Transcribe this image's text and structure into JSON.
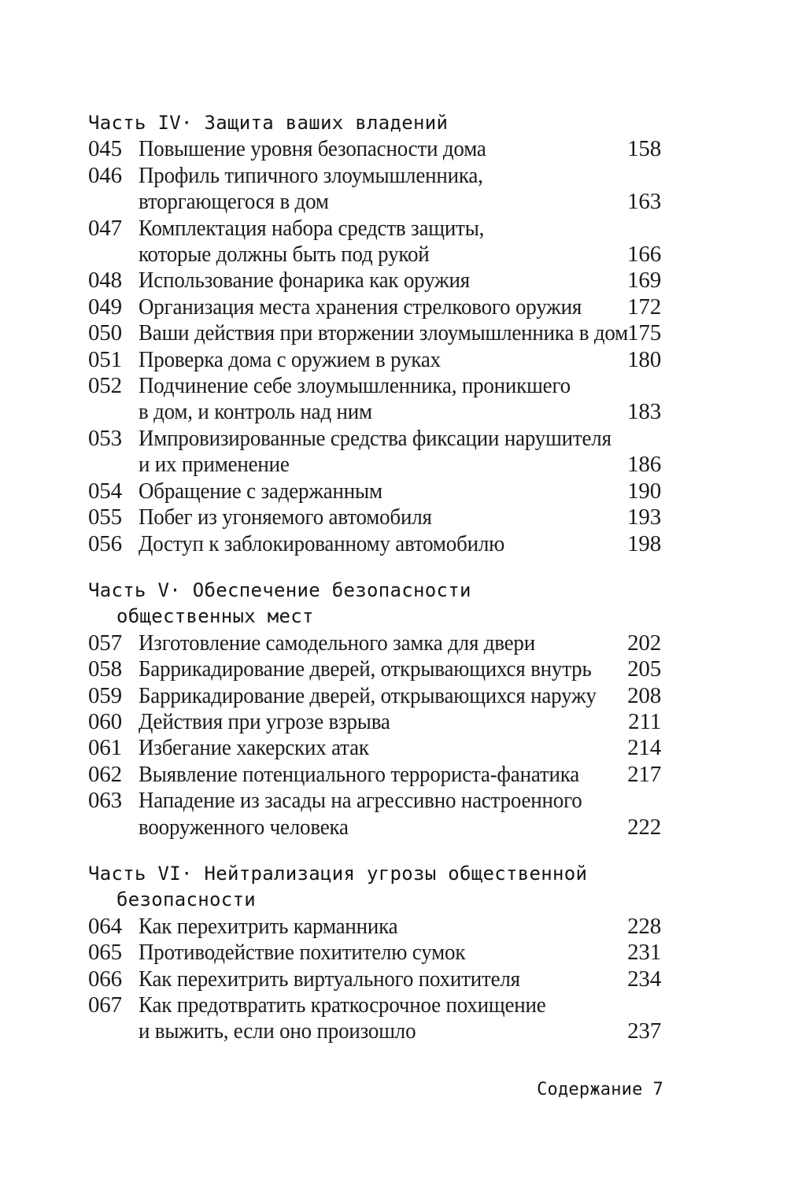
{
  "page": {
    "background": "#ffffff",
    "text_color": "#1b1b1b",
    "heading_text_color": "#161616"
  },
  "toc": {
    "sections": [
      {
        "heading_lines": [
          "Часть IV· Защита ваших владений"
        ],
        "entries": [
          {
            "num": "045",
            "lines": [
              "Повышение уровня безопасности дома"
            ],
            "page": "158"
          },
          {
            "num": "046",
            "lines": [
              "Профиль типичного злоумышленника,",
              "вторгающегося в дом"
            ],
            "page": "163"
          },
          {
            "num": "047",
            "lines": [
              "Комплектация набора средств защиты,",
              "которые должны быть под рукой"
            ],
            "page": "166"
          },
          {
            "num": "048",
            "lines": [
              "Использование фонарика как оружия"
            ],
            "page": "169"
          },
          {
            "num": "049",
            "lines": [
              "Организация места хранения стрелкового оружия"
            ],
            "page": "172"
          },
          {
            "num": "050",
            "lines": [
              "Ваши действия при вторжении злоумышленника в дом"
            ],
            "page": "175"
          },
          {
            "num": "051",
            "lines": [
              "Проверка дома с оружием в руках"
            ],
            "page": "180"
          },
          {
            "num": "052",
            "lines": [
              "Подчинение себе злоумышленника, проникшего",
              "в дом, и контроль над ним"
            ],
            "page": "183"
          },
          {
            "num": "053",
            "lines": [
              "Импровизированные средства фиксации нарушителя",
              "и их применение"
            ],
            "page": "186"
          },
          {
            "num": "054",
            "lines": [
              "Обращение с задержанным"
            ],
            "page": "190"
          },
          {
            "num": "055",
            "lines": [
              "Побег из угоняемого автомобиля"
            ],
            "page": "193"
          },
          {
            "num": "056",
            "lines": [
              "Доступ к заблокированному автомобилю"
            ],
            "page": "198"
          }
        ]
      },
      {
        "heading_lines": [
          "Часть V· Обеспечение безопасности",
          "общественных мест"
        ],
        "entries": [
          {
            "num": "057",
            "lines": [
              "Изготовление самодельного замка для двери"
            ],
            "page": "202"
          },
          {
            "num": "058",
            "lines": [
              "Баррикадирование дверей, открывающихся внутрь"
            ],
            "page": "205"
          },
          {
            "num": "059",
            "lines": [
              "Баррикадирование дверей, открывающихся наружу"
            ],
            "page": "208"
          },
          {
            "num": "060",
            "lines": [
              "Действия при угрозе взрыва"
            ],
            "page": "211"
          },
          {
            "num": "061",
            "lines": [
              "Избегание хакерских атак"
            ],
            "page": "214"
          },
          {
            "num": "062",
            "lines": [
              "Выявление потенциального террориста-фанатика"
            ],
            "page": "217"
          },
          {
            "num": "063",
            "lines": [
              "Нападение из засады на агрессивно настроенного",
              "вооруженного человека"
            ],
            "page": "222"
          }
        ]
      },
      {
        "heading_lines": [
          "Часть VI· Нейтрализация угрозы общественной",
          "безопасности"
        ],
        "entries": [
          {
            "num": "064",
            "lines": [
              "Как перехитрить карманника"
            ],
            "page": "228"
          },
          {
            "num": "065",
            "lines": [
              "Противодействие похитителю сумок"
            ],
            "page": "231"
          },
          {
            "num": "066",
            "lines": [
              "Как перехитрить виртуального похитителя"
            ],
            "page": "234"
          },
          {
            "num": "067",
            "lines": [
              "Как предотвратить краткосрочное похищение",
              "и выжить, если оно произошло"
            ],
            "page": "237"
          }
        ]
      }
    ]
  },
  "footer": {
    "label": "Содержание",
    "page_number": "7"
  }
}
